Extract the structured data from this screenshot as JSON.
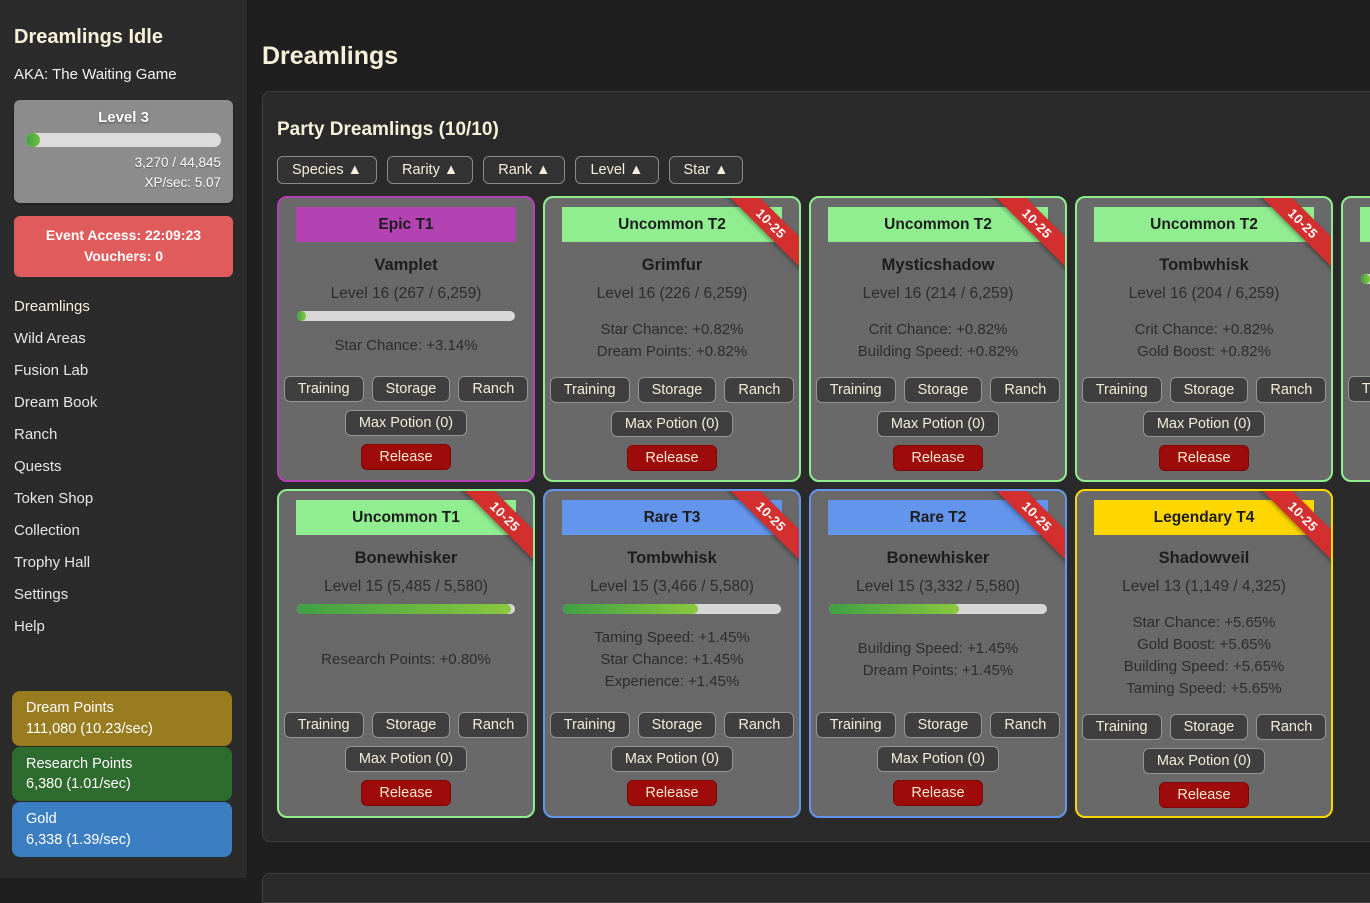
{
  "app": {
    "title": "Dreamlings Idle",
    "subtitle": "AKA: The Waiting Game"
  },
  "player": {
    "level_label": "Level 3",
    "xp_text": "3,270 / 44,845",
    "xp_rate_text": "XP/sec: 5.07",
    "xp_progress": "7.3%"
  },
  "event_box": {
    "access_text": "Event Access: 22:09:23",
    "vouchers_text": "Vouchers: 0",
    "color": "#e05c5c"
  },
  "nav": {
    "items": [
      {
        "label": "Dreamlings",
        "active": true
      },
      {
        "label": "Wild Areas",
        "active": false
      },
      {
        "label": "Fusion Lab",
        "active": false
      },
      {
        "label": "Dream Book",
        "active": false
      },
      {
        "label": "Ranch",
        "active": false
      },
      {
        "label": "Quests",
        "active": false
      },
      {
        "label": "Token Shop",
        "active": false
      },
      {
        "label": "Collection",
        "active": false
      },
      {
        "label": "Trophy Hall",
        "active": false
      },
      {
        "label": "Settings",
        "active": false
      },
      {
        "label": "Help",
        "active": false
      }
    ]
  },
  "resources": [
    {
      "label": "Dream Points",
      "value": "111,080 (10.23/sec)",
      "color": "#997c1f"
    },
    {
      "label": "Research Points",
      "value": "6,380 (1.01/sec)",
      "color": "#2e6b2e"
    },
    {
      "label": "Gold",
      "value": "6,338 (1.39/sec)",
      "color": "#3b7ec2"
    }
  ],
  "main": {
    "title": "Dreamlings"
  },
  "party": {
    "heading": "Party Dreamlings (10/10)",
    "sort_buttons": [
      "Species ▲",
      "Rarity ▲",
      "Rank ▲",
      "Level ▲",
      "Star ▲"
    ],
    "card_buttons": {
      "training": "Training",
      "storage": "Storage",
      "ranch": "Ranch",
      "max_potion": "Max Potion (0)",
      "release": "Release"
    },
    "ribbon_color": "#d32f2f",
    "release_color": "#9e0b0b",
    "rarity_colors": {
      "epic": "#b342b3",
      "uncommon": "#90ee90",
      "rare": "#6495ed",
      "legendary": "#ffd700"
    },
    "rows": [
      [
        {
          "rarity": "Epic T1",
          "color": "#b342b3",
          "name": "Vamplet",
          "level": "Level 16 (267 / 6,259)",
          "progress": "4.3%",
          "stats": [
            "Star Chance: +3.14%"
          ],
          "ribbon": null
        },
        {
          "rarity": "Uncommon T2",
          "color": "#90ee90",
          "name": "Grimfur",
          "level": "Level 16 (226 / 6,259)",
          "progress": "3.6%",
          "stats": [
            "Star Chance: +0.82%",
            "Dream Points: +0.82%"
          ],
          "ribbon": "10-25"
        },
        {
          "rarity": "Uncommon T2",
          "color": "#90ee90",
          "name": "Mysticshadow",
          "level": "Level 16 (214 / 6,259)",
          "progress": "3.4%",
          "stats": [
            "Crit Chance: +0.82%",
            "Building Speed: +0.82%"
          ],
          "ribbon": "10-25"
        },
        {
          "rarity": "Uncommon T2",
          "color": "#90ee90",
          "name": "Tombwhisk",
          "level": "Level 16 (204 / 6,259)",
          "progress": "3.3%",
          "stats": [
            "Crit Chance: +0.82%",
            "Gold Boost: +0.82%"
          ],
          "ribbon": "10-25"
        },
        {
          "rarity": "",
          "color": "#90ee90",
          "name": "",
          "level": "",
          "progress": "4%",
          "stats": [],
          "ribbon": null,
          "partial": true
        }
      ],
      [
        {
          "rarity": "Uncommon T1",
          "color": "#90ee90",
          "name": "Bonewhisker",
          "level": "Level 15 (5,485 / 5,580)",
          "progress": "98.3%",
          "stats": [
            "Research Points: +0.80%"
          ],
          "ribbon": "10-25"
        },
        {
          "rarity": "Rare T3",
          "color": "#6495ed",
          "name": "Tombwhisk",
          "level": "Level 15 (3,466 / 5,580)",
          "progress": "62.1%",
          "stats": [
            "Taming Speed: +1.45%",
            "Star Chance: +1.45%",
            "Experience: +1.45%"
          ],
          "ribbon": "10-25"
        },
        {
          "rarity": "Rare T2",
          "color": "#6495ed",
          "name": "Bonewhisker",
          "level": "Level 15 (3,332 / 5,580)",
          "progress": "59.7%",
          "stats": [
            "Building Speed: +1.45%",
            "Dream Points: +1.45%"
          ],
          "ribbon": "10-25"
        },
        {
          "rarity": "Legendary T4",
          "color": "#ffd700",
          "name": "Shadowveil",
          "level": "Level 13 (1,149 / 4,325)",
          "progress": "26.6%",
          "stats": [
            "Star Chance: +5.65%",
            "Gold Boost: +5.65%",
            "Building Speed: +5.65%",
            "Taming Speed: +5.65%"
          ],
          "ribbon": "10-25"
        }
      ]
    ]
  }
}
